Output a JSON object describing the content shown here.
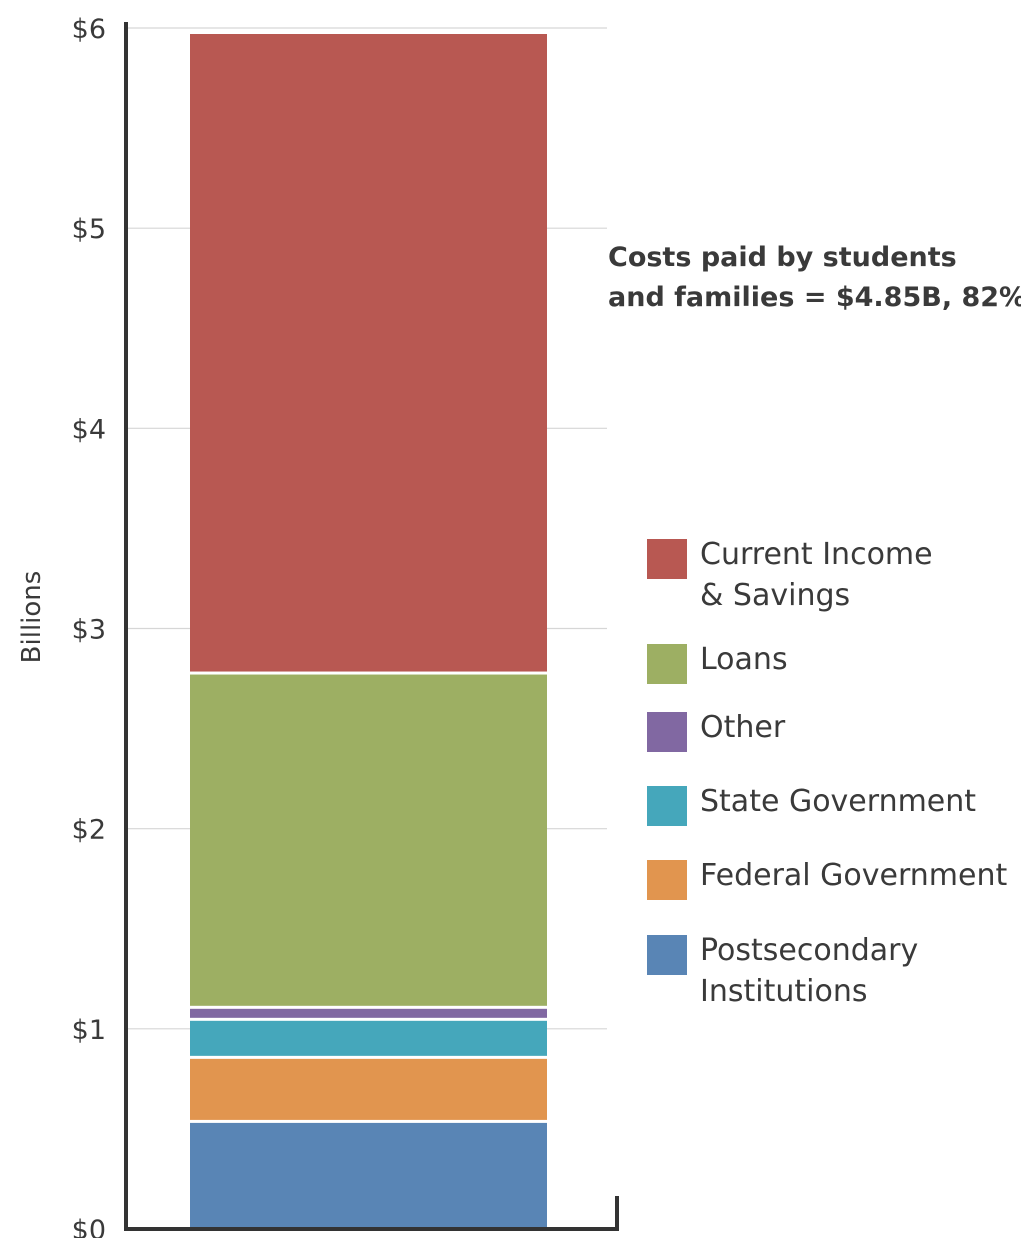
{
  "chart_data": {
    "type": "bar",
    "stacked": true,
    "categories": [
      ""
    ],
    "ylabel": "Billions",
    "ylim": [
      0,
      6
    ],
    "y_ticks": [
      "$0",
      "$1",
      "$2",
      "$3",
      "$4",
      "$5",
      "$6"
    ],
    "grid": true,
    "legend_position": "right",
    "series": [
      {
        "name": "Postsecondary Institutions",
        "values": [
          0.53
        ],
        "color": "#5985b5"
      },
      {
        "name": "Federal Government",
        "values": [
          0.32
        ],
        "color": "#e1954f"
      },
      {
        "name": "State Government",
        "values": [
          0.19
        ],
        "color": "#45a7bb"
      },
      {
        "name": "Other",
        "values": [
          0.06
        ],
        "color": "#8168a2"
      },
      {
        "name": "Loans",
        "values": [
          1.67
        ],
        "color": "#9daf63"
      },
      {
        "name": "Current Income & Savings",
        "values": [
          3.2
        ],
        "color": "#b85852"
      }
    ],
    "annotation": [
      "Costs paid by students",
      "and families = $4.85B, 82%"
    ]
  },
  "legend": [
    {
      "lines": [
        "Current Income",
        "& Savings"
      ],
      "color": "#b85852"
    },
    {
      "lines": [
        "Loans"
      ],
      "color": "#9daf63"
    },
    {
      "lines": [
        "Other"
      ],
      "color": "#8168a2"
    },
    {
      "lines": [
        "State Government"
      ],
      "color": "#45a7bb"
    },
    {
      "lines": [
        "Federal Government"
      ],
      "color": "#e1954f"
    },
    {
      "lines": [
        "Postsecondary",
        "Institutions"
      ],
      "color": "#5985b5"
    }
  ]
}
